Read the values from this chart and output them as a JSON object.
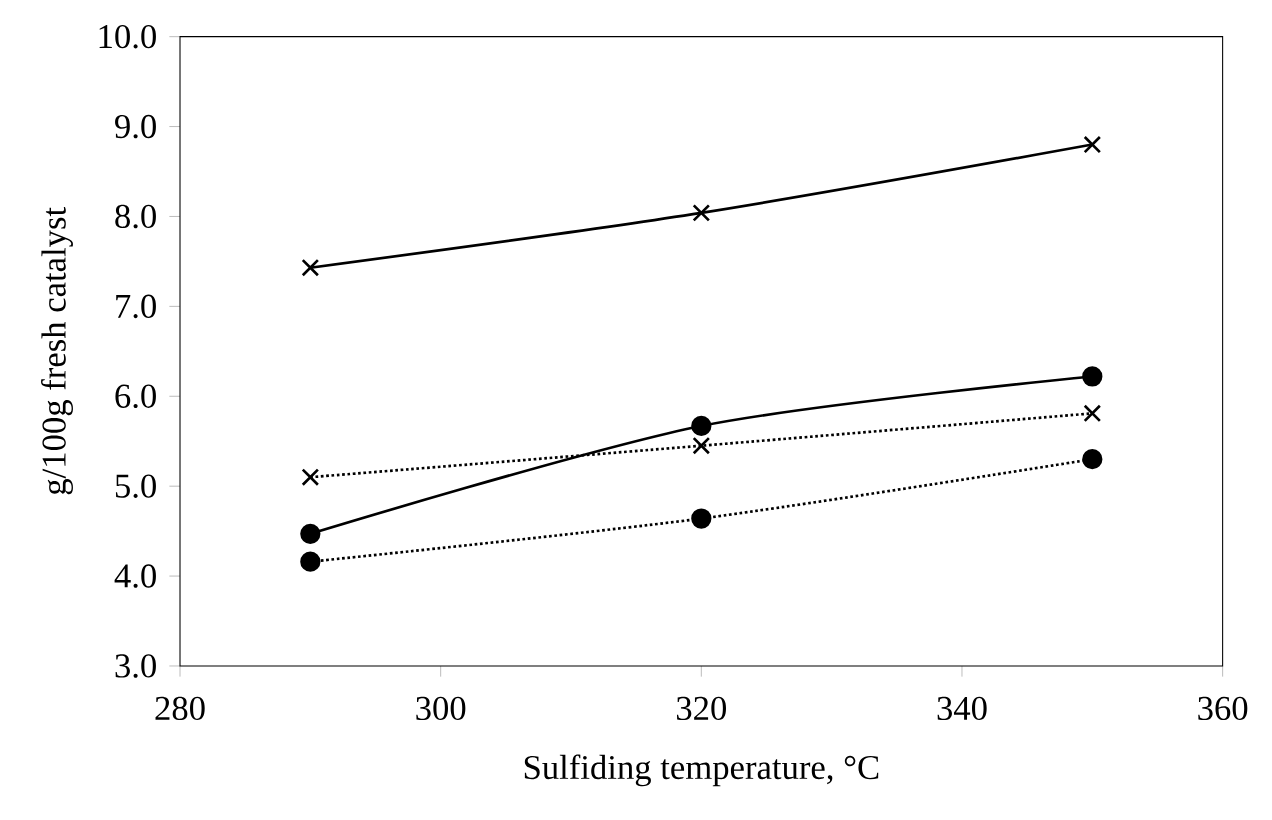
{
  "chart_data": {
    "type": "line",
    "xlabel": "Sulfiding temperature, °C",
    "ylabel": "g/100g fresh catalyst",
    "x": [
      290,
      320,
      350
    ],
    "series": [
      {
        "color": "#000000",
        "marker": "cross",
        "line_style": "solid",
        "values": [
          7.43,
          8.04,
          8.8
        ]
      },
      {
        "color": "#000000",
        "marker": "circle",
        "line_style": "solid",
        "values": [
          4.47,
          5.67,
          6.22
        ]
      },
      {
        "color": "#000000",
        "marker": "cross",
        "line_style": "dotted",
        "values": [
          5.1,
          5.45,
          5.81
        ]
      },
      {
        "color": "#000000",
        "marker": "circle",
        "line_style": "dotted",
        "values": [
          4.16,
          4.64,
          5.3
        ]
      }
    ],
    "xlim": [
      280,
      360
    ],
    "xticks": [
      280,
      300,
      320,
      340,
      360
    ],
    "ylim": [
      3.0,
      10.0
    ],
    "yticks": [
      {
        "value": 3,
        "label": "3.0"
      },
      {
        "value": 4,
        "label": "4.0"
      },
      {
        "value": 5,
        "label": "5.0"
      },
      {
        "value": 6,
        "label": "6.0"
      },
      {
        "value": 7,
        "label": "7.0"
      },
      {
        "value": 8,
        "label": "8.0"
      },
      {
        "value": 9,
        "label": "9.0"
      },
      {
        "value": 10,
        "label": "10.0"
      }
    ],
    "grid": false
  }
}
